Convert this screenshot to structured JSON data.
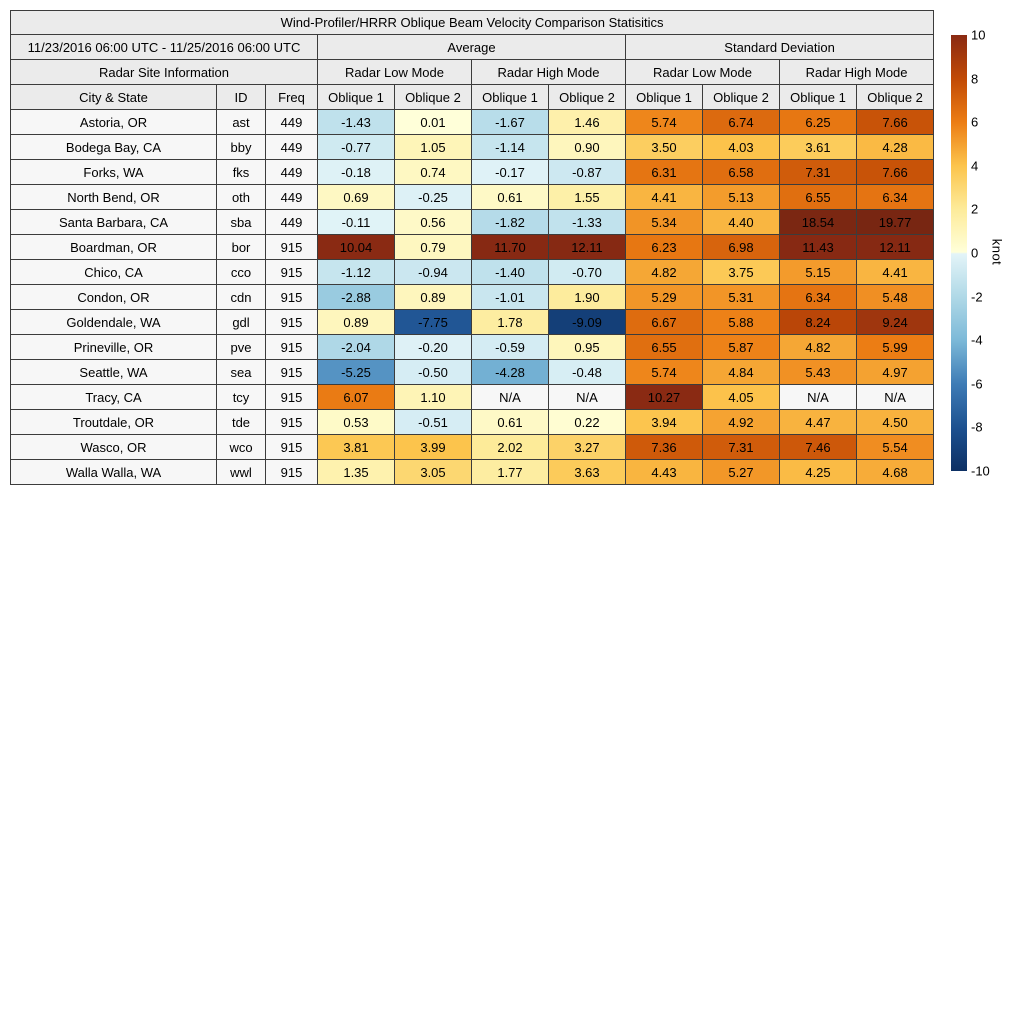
{
  "chart_data": {
    "type": "table",
    "title": "Wind-Profiler/HRRR Oblique Beam Velocity Comparison Statisitics",
    "date_range": "11/23/2016 06:00 UTC - 11/25/2016 06:00 UTC",
    "groups": {
      "average": "Average",
      "std": "Standard Deviation",
      "site_info": "Radar Site Information",
      "low": "Radar Low Mode",
      "high": "Radar High Mode"
    },
    "columns": {
      "city": "City & State",
      "id": "ID",
      "freq": "Freq",
      "oblique1": "Oblique 1",
      "oblique2": "Oblique 2"
    },
    "value_columns": [
      "Average Radar Low Mode Oblique 1",
      "Average Radar Low Mode Oblique 2",
      "Average Radar High Mode Oblique 1",
      "Average Radar High Mode Oblique 2",
      "Std Radar Low Mode Oblique 1",
      "Std Radar Low Mode Oblique 2",
      "Std Radar High Mode Oblique 1",
      "Std Radar High Mode Oblique 2"
    ],
    "rows": [
      {
        "city": "Astoria, OR",
        "id": "ast",
        "freq": "449",
        "values": [
          "-1.43",
          "0.01",
          "-1.67",
          "1.46",
          "5.74",
          "6.74",
          "6.25",
          "7.66"
        ]
      },
      {
        "city": "Bodega Bay, CA",
        "id": "bby",
        "freq": "449",
        "values": [
          "-0.77",
          "1.05",
          "-1.14",
          "0.90",
          "3.50",
          "4.03",
          "3.61",
          "4.28"
        ]
      },
      {
        "city": "Forks, WA",
        "id": "fks",
        "freq": "449",
        "values": [
          "-0.18",
          "0.74",
          "-0.17",
          "-0.87",
          "6.31",
          "6.58",
          "7.31",
          "7.66"
        ]
      },
      {
        "city": "North Bend, OR",
        "id": "oth",
        "freq": "449",
        "values": [
          "0.69",
          "-0.25",
          "0.61",
          "1.55",
          "4.41",
          "5.13",
          "6.55",
          "6.34"
        ]
      },
      {
        "city": "Santa Barbara, CA",
        "id": "sba",
        "freq": "449",
        "values": [
          "-0.11",
          "0.56",
          "-1.82",
          "-1.33",
          "5.34",
          "4.40",
          "18.54",
          "19.77"
        ]
      },
      {
        "city": "Boardman, OR",
        "id": "bor",
        "freq": "915",
        "values": [
          "10.04",
          "0.79",
          "11.70",
          "12.11",
          "6.23",
          "6.98",
          "11.43",
          "12.11"
        ]
      },
      {
        "city": "Chico, CA",
        "id": "cco",
        "freq": "915",
        "values": [
          "-1.12",
          "-0.94",
          "-1.40",
          "-0.70",
          "4.82",
          "3.75",
          "5.15",
          "4.41"
        ]
      },
      {
        "city": "Condon, OR",
        "id": "cdn",
        "freq": "915",
        "values": [
          "-2.88",
          "0.89",
          "-1.01",
          "1.90",
          "5.29",
          "5.31",
          "6.34",
          "5.48"
        ]
      },
      {
        "city": "Goldendale, WA",
        "id": "gdl",
        "freq": "915",
        "values": [
          "0.89",
          "-7.75",
          "1.78",
          "-9.09",
          "6.67",
          "5.88",
          "8.24",
          "9.24"
        ]
      },
      {
        "city": "Prineville, OR",
        "id": "pve",
        "freq": "915",
        "values": [
          "-2.04",
          "-0.20",
          "-0.59",
          "0.95",
          "6.55",
          "5.87",
          "4.82",
          "5.99"
        ]
      },
      {
        "city": "Seattle, WA",
        "id": "sea",
        "freq": "915",
        "values": [
          "-5.25",
          "-0.50",
          "-4.28",
          "-0.48",
          "5.74",
          "4.84",
          "5.43",
          "4.97"
        ]
      },
      {
        "city": "Tracy, CA",
        "id": "tcy",
        "freq": "915",
        "values": [
          "6.07",
          "1.10",
          "N/A",
          "N/A",
          "10.27",
          "4.05",
          "N/A",
          "N/A"
        ]
      },
      {
        "city": "Troutdale, OR",
        "id": "tde",
        "freq": "915",
        "values": [
          "0.53",
          "-0.51",
          "0.61",
          "0.22",
          "3.94",
          "4.92",
          "4.47",
          "4.50"
        ]
      },
      {
        "city": "Wasco, OR",
        "id": "wco",
        "freq": "915",
        "values": [
          "3.81",
          "3.99",
          "2.02",
          "3.27",
          "7.36",
          "7.31",
          "7.46",
          "5.54"
        ]
      },
      {
        "city": "Walla Walla, WA",
        "id": "wwl",
        "freq": "915",
        "values": [
          "1.35",
          "3.05",
          "1.77",
          "3.63",
          "4.43",
          "5.27",
          "4.25",
          "4.68"
        ]
      }
    ],
    "colorbar": {
      "label": "knot",
      "min": -10,
      "max": 10,
      "ticks": [
        10,
        8,
        6,
        4,
        2,
        0,
        -2,
        -4,
        -6,
        -8,
        -10
      ],
      "positive_stop_colors": [
        "#ffffd9",
        "#fdeb9a",
        "#fcc44c",
        "#ec7d14",
        "#c14a06",
        "#8a2a13"
      ],
      "negative_stop_colors": [
        "#e3f4f8",
        "#b0d9e7",
        "#7cb9d8",
        "#3e7cb6",
        "#1d5190",
        "#0d3064"
      ]
    },
    "na_cell_color": "#f7f7f7",
    "header_color": "#ebebeb",
    "grid_color": "#3c3c3c"
  }
}
